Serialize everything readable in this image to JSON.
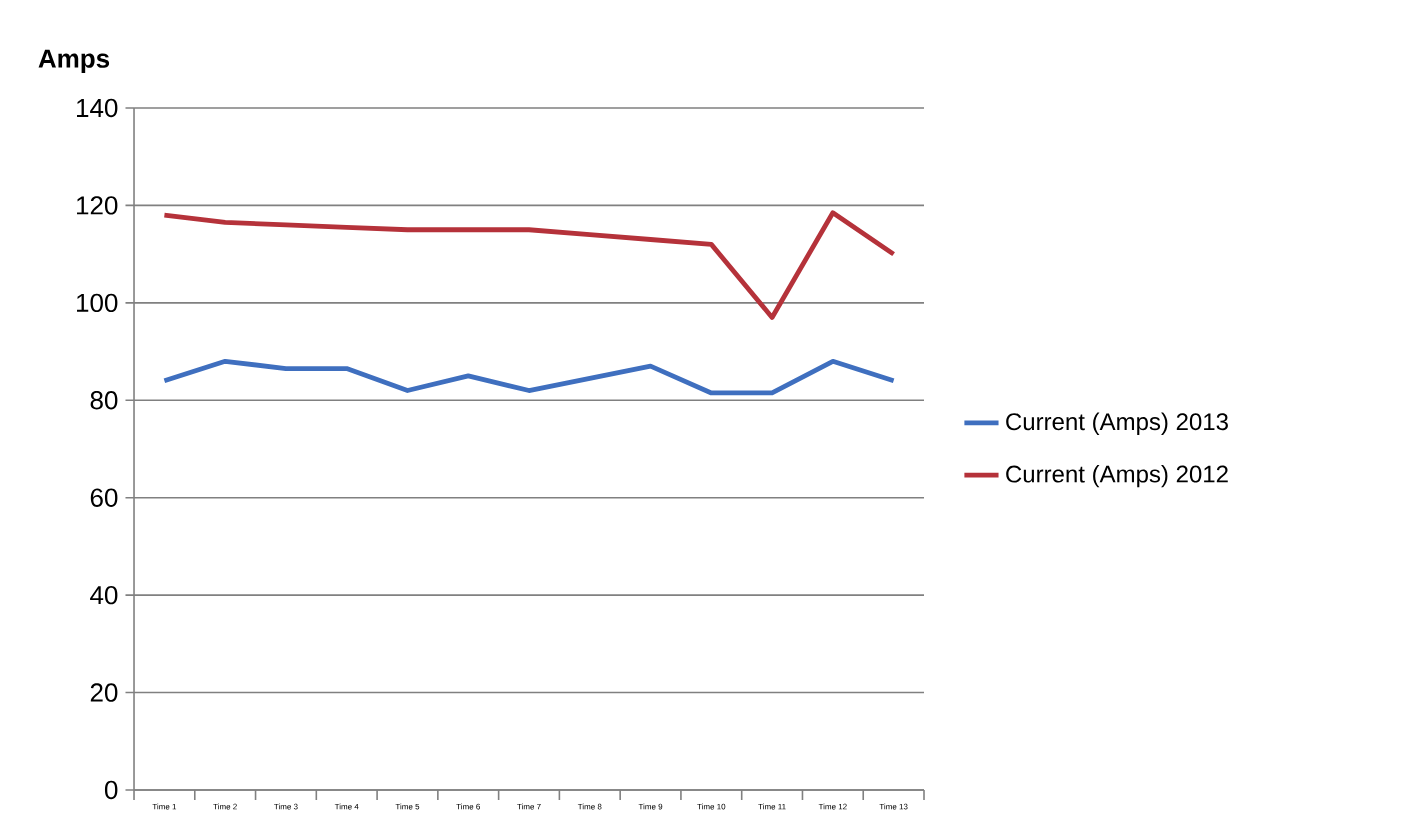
{
  "chart_data": {
    "type": "line",
    "ylabel": "Amps",
    "categories": [
      "Time 1",
      "Time 2",
      "Time 3",
      "Time 4",
      "Time 5",
      "Time 6",
      "Time 7",
      "Time 8",
      "Time 9",
      "Time 10",
      "Time 11",
      "Time 12",
      "Time 13"
    ],
    "series": [
      {
        "name": "Current (Amps) 2013",
        "color": "#3f6fbf",
        "values": [
          84,
          88,
          86.5,
          86.5,
          82,
          85,
          82,
          84.5,
          87,
          81.5,
          81.5,
          88,
          84
        ]
      },
      {
        "name": "Current (Amps) 2012",
        "color": "#b5323a",
        "values": [
          118,
          116.5,
          116,
          115.5,
          115,
          115,
          115,
          114,
          113,
          112,
          97,
          118.5,
          110
        ]
      }
    ],
    "ylim": [
      0,
      140
    ],
    "yticks": [
      0,
      20,
      40,
      60,
      80,
      100,
      120,
      140
    ],
    "grid": "y",
    "legend": "right",
    "marker": "none",
    "line_style": "solid"
  }
}
